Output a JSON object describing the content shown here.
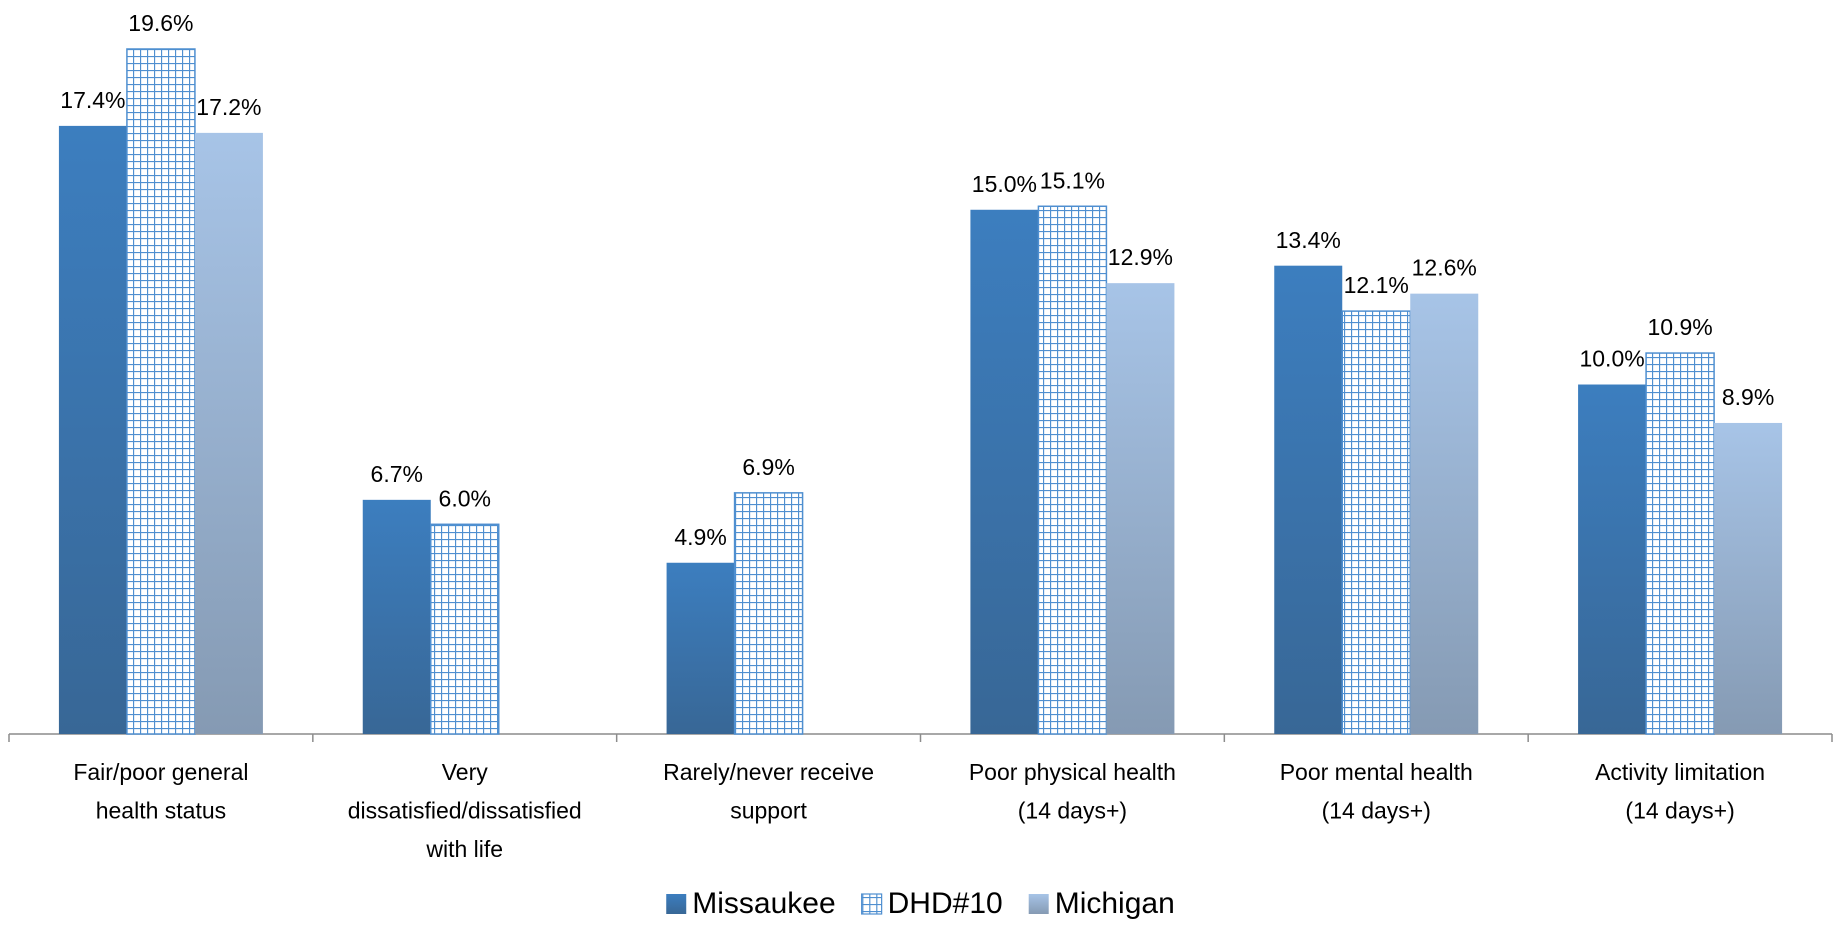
{
  "chart_data": {
    "type": "bar",
    "categories": [
      [
        "Fair/poor general",
        "health status"
      ],
      [
        "Very",
        "dissatisfied/dissatisfied",
        "with life"
      ],
      [
        "Rarely/never receive",
        "support"
      ],
      [
        "Poor physical health",
        "(14 days+)"
      ],
      [
        "Poor mental health",
        "(14 days+)"
      ],
      [
        "Activity limitation",
        "(14 days+)"
      ]
    ],
    "series": [
      {
        "name": "Missaukee",
        "color": "#3c7ebf",
        "values": [
          17.4,
          6.7,
          4.9,
          15.0,
          13.4,
          10.0
        ],
        "value_labels": [
          "17.4%",
          "6.7%",
          "4.9%",
          "15.0%",
          "13.4%",
          "10.0%"
        ]
      },
      {
        "name": "DHD#10",
        "color": "#4f8fd0",
        "pattern": "grid",
        "values": [
          19.6,
          6.0,
          6.9,
          15.1,
          12.1,
          10.9
        ],
        "value_labels": [
          "19.6%",
          "6.0%",
          "6.9%",
          "15.1%",
          "12.1%",
          "10.9%"
        ]
      },
      {
        "name": "Michigan",
        "color": "#a7c4e7",
        "values": [
          17.2,
          null,
          null,
          12.9,
          12.6,
          8.9
        ],
        "value_labels": [
          "17.2%",
          null,
          null,
          "12.9%",
          "12.6%",
          "8.9%"
        ]
      }
    ],
    "legend": "bottom"
  }
}
